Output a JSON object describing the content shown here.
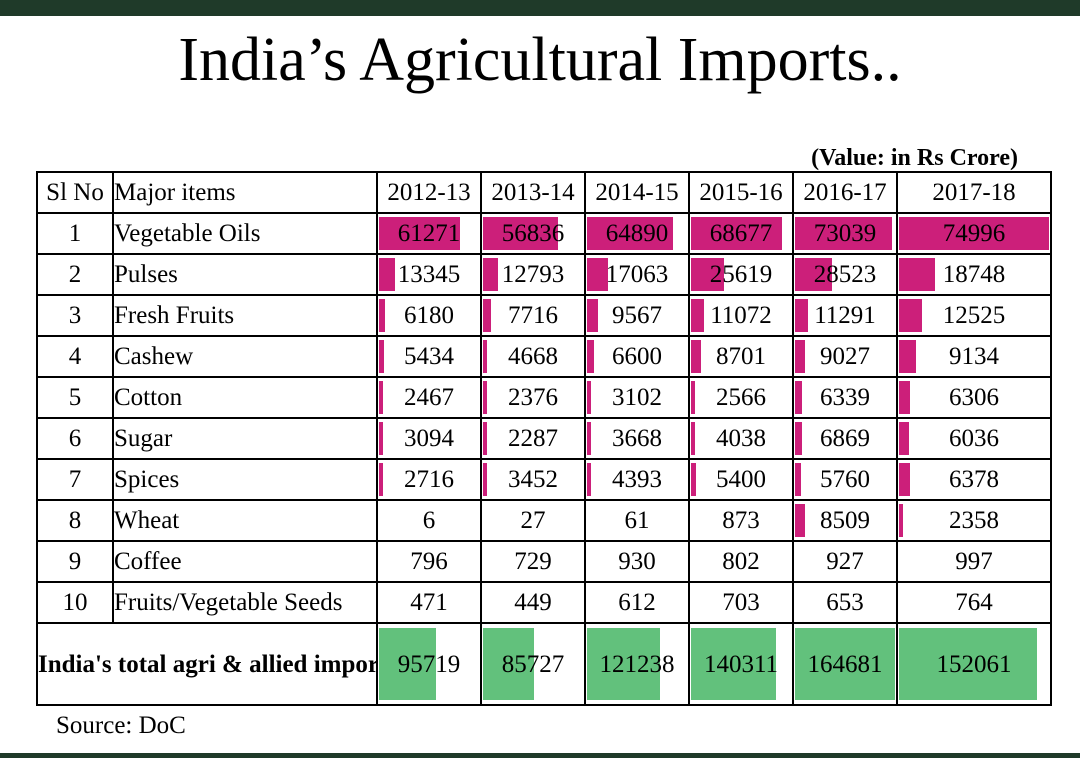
{
  "title": "India’s Agricultural Imports..",
  "unit_note": "(Value: in Rs Crore)",
  "source": "Source: DoC",
  "colors": {
    "bar_items": "#cc1f7a",
    "bar_total": "#62c17c",
    "top_bar": "#1f3a29"
  },
  "headers": {
    "sl": "Sl No",
    "item": "Major items",
    "years": [
      "2012-13",
      "2013-14",
      "2014-15",
      "2015-16",
      "2016-17",
      "2017-18"
    ]
  },
  "rows": [
    {
      "sl": "1",
      "item": "Vegetable Oils",
      "values": [
        "61271",
        "56836",
        "64890",
        "68677",
        "73039",
        "74996"
      ]
    },
    {
      "sl": "2",
      "item": "Pulses",
      "values": [
        "13345",
        "12793",
        "17063",
        "25619",
        "28523",
        "18748"
      ]
    },
    {
      "sl": "3",
      "item": "Fresh Fruits",
      "values": [
        "6180",
        "7716",
        "9567",
        "11072",
        "11291",
        "12525"
      ]
    },
    {
      "sl": "4",
      "item": "Cashew",
      "values": [
        "5434",
        "4668",
        "6600",
        "8701",
        "9027",
        "9134"
      ]
    },
    {
      "sl": "5",
      "item": "Cotton",
      "values": [
        "2467",
        "2376",
        "3102",
        "2566",
        "6339",
        "6306"
      ]
    },
    {
      "sl": "6",
      "item": "Sugar",
      "values": [
        "3094",
        "2287",
        "3668",
        "4038",
        "6869",
        "6036"
      ]
    },
    {
      "sl": "7",
      "item": "Spices",
      "values": [
        "2716",
        "3452",
        "4393",
        "5400",
        "5760",
        "6378"
      ]
    },
    {
      "sl": "8",
      "item": "Wheat",
      "values": [
        "6",
        "27",
        "61",
        "873",
        "8509",
        "2358"
      ]
    },
    {
      "sl": "9",
      "item": "Coffee",
      "values": [
        "796",
        "729",
        "930",
        "802",
        "927",
        "997"
      ]
    },
    {
      "sl": "10",
      "item": "Fruits/Vegetable Seeds",
      "values": [
        "471",
        "449",
        "612",
        "703",
        "653",
        "764"
      ]
    }
  ],
  "total": {
    "label": "India's total agri & allied import",
    "values": [
      "95719",
      "85727",
      "121238",
      "140311",
      "164681",
      "152061"
    ]
  },
  "bar_scale": {
    "items_max": 74996,
    "total_max": 164681
  }
}
